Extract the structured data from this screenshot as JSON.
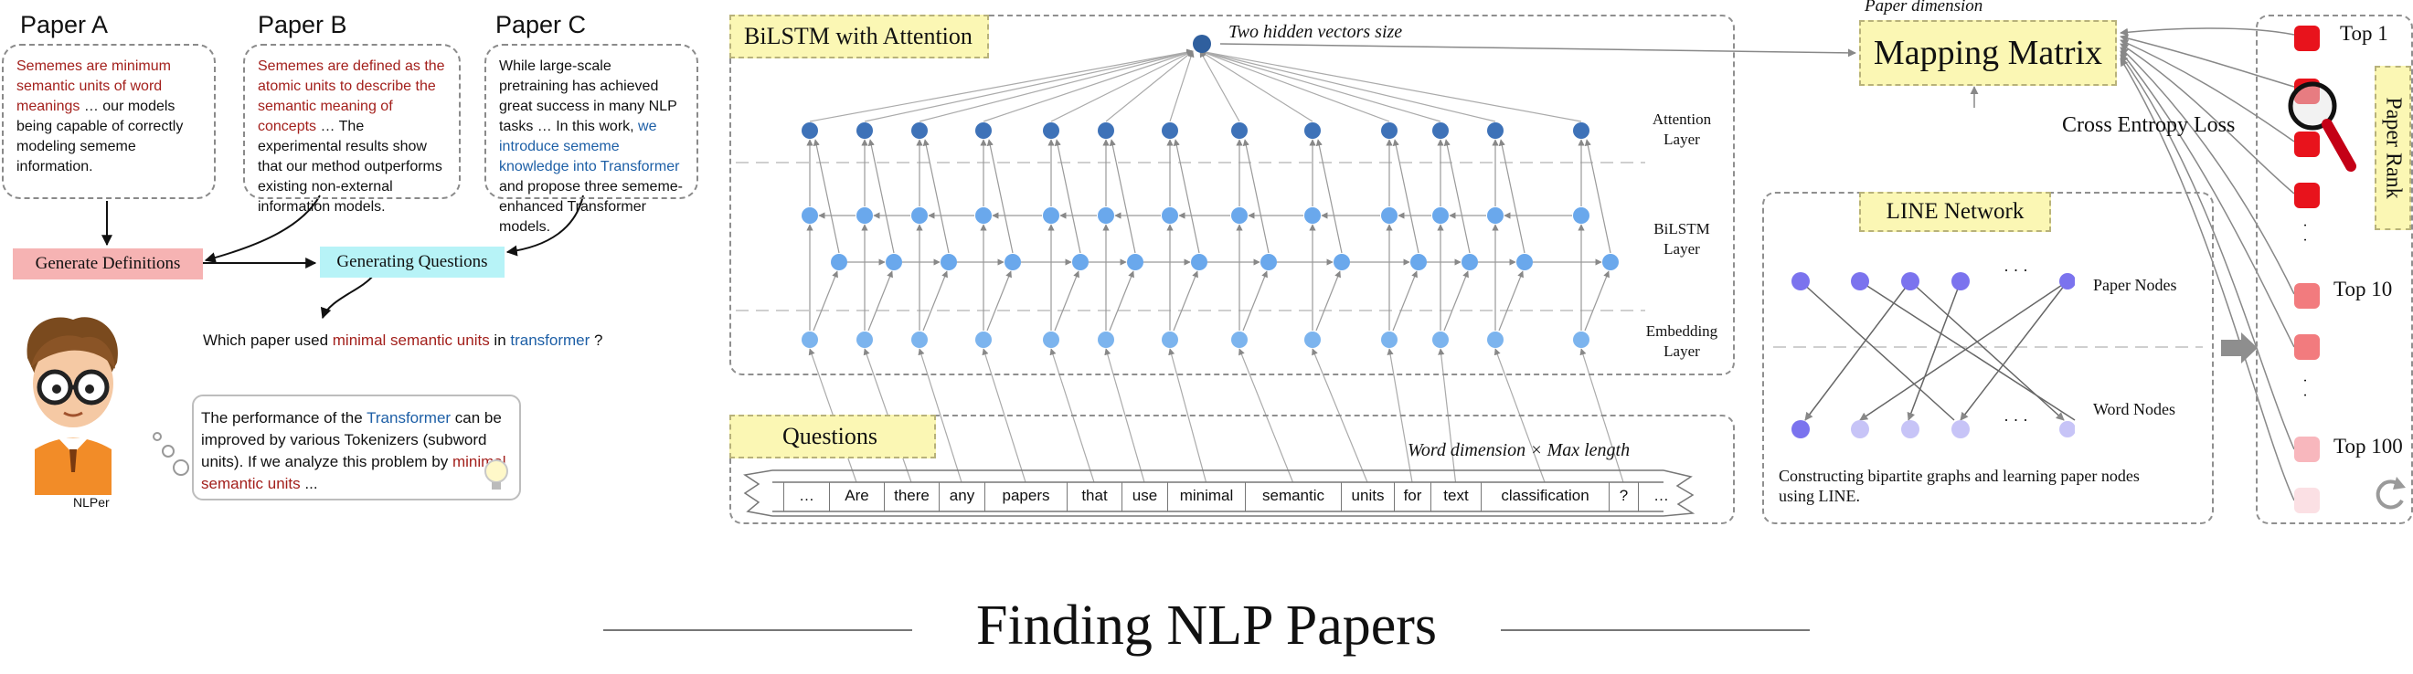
{
  "papers": {
    "a": {
      "title": "Paper A",
      "red": "Sememes are minimum semantic units of word meanings",
      "rest": " … our models being capable of correctly modeling sememe information."
    },
    "b": {
      "title": "Paper B",
      "red": "Sememes are defined as the atomic units to describe the semantic meaning of concepts",
      "rest": " … The experimental results show that our method outperforms existing non-external information models."
    },
    "c": {
      "title": "Paper C",
      "pre": "While large-scale pretraining has achieved great success in many NLP tasks … In this work, ",
      "blue": "we introduce sememe knowledge into Transformer",
      "rest": " and propose three sememe-enhanced Transformer models."
    }
  },
  "gen_definitions": "Generate Definitions",
  "gen_questions": "Generating Questions",
  "question": {
    "pre": "Which paper used ",
    "red": "minimal semantic units",
    "mid": " in ",
    "blue": "transformer",
    "post": " ?"
  },
  "thought": {
    "pre": "The performance of the ",
    "blue": "Transformer",
    "mid": " can be improved by various Tokenizers (subword units). If we analyze this problem by ",
    "red": "minimal semantic units",
    "post": " ..."
  },
  "avatar_label": "NLPer",
  "bilstm_title": "BiLSTM with Attention",
  "hidden_label": "Two hidden vectors size",
  "layers": {
    "attention": [
      "Attention",
      "Layer"
    ],
    "bilstm": [
      "BiLSTM",
      "Layer"
    ],
    "embedding": [
      "Embedding",
      "Layer"
    ]
  },
  "questions_title": "Questions",
  "word_dim_label": "Word dimension × Max length",
  "tokens": [
    "…",
    "Are",
    "there",
    "any",
    "papers",
    "that",
    "use",
    "minimal",
    "semantic",
    "units",
    "for",
    "text",
    "classification",
    "?",
    "…"
  ],
  "paper_dim_label": "Paper dimension",
  "mapping_matrix": "Mapping Matrix",
  "cross_entropy": "Cross Entropy Loss",
  "line_title": "LINE Network",
  "paper_nodes": "Paper Nodes",
  "word_nodes": "Word Nodes",
  "node_ellipsis": "· · ·",
  "line_caption": "Constructing bipartite graphs and learning paper nodes using LINE.",
  "rank": {
    "top1": "Top 1",
    "top10": "Top 10",
    "top100": "Top 100",
    "vertical": "Paper Rank",
    "dots": "·"
  },
  "main_title": "Finding NLP Papers",
  "colors": {
    "red_text": "#a3201c",
    "blue_text": "#1d5fa6",
    "node_dark": "#3e72b8",
    "node_light": "#6aa8ec",
    "yellow": "#fbf7b4",
    "pink": "#f6b3b3",
    "cyan": "#b7f3f7"
  }
}
